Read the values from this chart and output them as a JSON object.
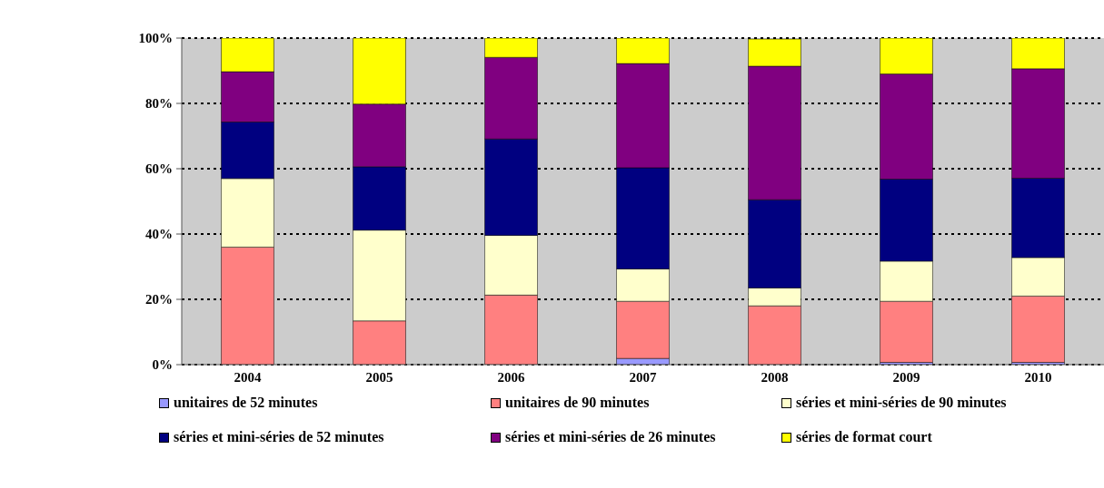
{
  "chart_data": {
    "type": "bar",
    "stacked": true,
    "categories": [
      "2004",
      "2005",
      "2006",
      "2007",
      "2008",
      "2009",
      "2010"
    ],
    "series": [
      {
        "name": "unitaires de 52 minutes",
        "color": "#9999ff",
        "values": [
          0,
          0,
          0,
          1.9,
          null,
          0.7,
          0.7
        ]
      },
      {
        "name": "unitaires de 90 minutes",
        "color": "#ff8080",
        "values": [
          36,
          13.4,
          21.3,
          17.5,
          18,
          18.7,
          20.3
        ]
      },
      {
        "name": "séries et mini-séries de 90 minutes",
        "color": "#ffffcc",
        "values": [
          21,
          27.8,
          18.3,
          9.9,
          5.5,
          12.3,
          11.8
        ]
      },
      {
        "name": "séries et mini-séries de 52 minutes",
        "color": "#000080",
        "values": [
          17.3,
          19.4,
          29.5,
          31,
          27,
          25.1,
          24.3
        ]
      },
      {
        "name": "séries et mini-séries de 26 minutes",
        "color": "#800080",
        "values": [
          15.4,
          19.2,
          25,
          31.9,
          40.9,
          32.2,
          33.5
        ]
      },
      {
        "name": "séries de format court",
        "color": "#ffff00",
        "values": [
          10.3,
          20.2,
          5.9,
          7.8,
          8.3,
          11,
          9.4
        ]
      }
    ],
    "ylim": [
      0,
      100
    ],
    "yticks": [
      {
        "value": 0,
        "label": "0%"
      },
      {
        "value": 20,
        "label": "20%"
      },
      {
        "value": 40,
        "label": "40%"
      },
      {
        "value": 60,
        "label": "60%"
      },
      {
        "value": 80,
        "label": "80%"
      },
      {
        "value": 100,
        "label": "100%"
      }
    ],
    "grid": "y",
    "legend": "bottom"
  }
}
